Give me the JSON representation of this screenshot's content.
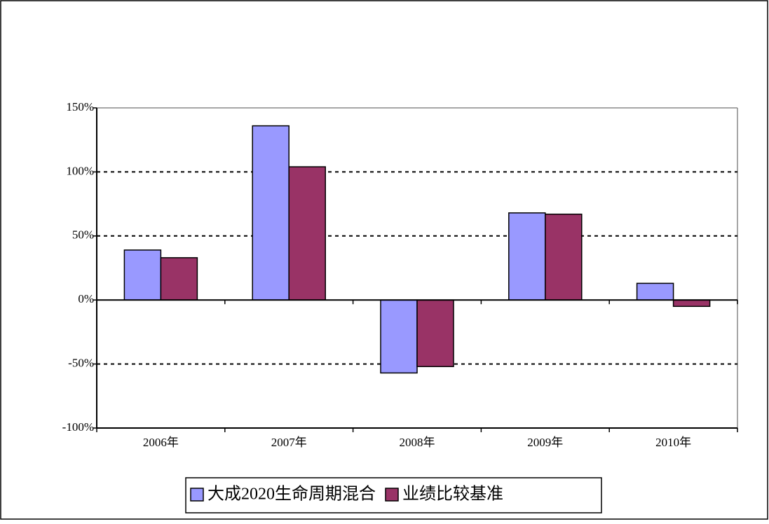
{
  "chart_data": {
    "type": "bar",
    "categories": [
      "2006年",
      "2007年",
      "2008年",
      "2009年",
      "2010年"
    ],
    "series": [
      {
        "name": "大成2020生命周期混合",
        "color": "#9999ff",
        "values": [
          39,
          136,
          -57,
          68,
          13
        ]
      },
      {
        "name": "业绩比较基准",
        "color": "#993366",
        "values": [
          33,
          104,
          -52,
          67,
          -5
        ]
      }
    ],
    "ylim": [
      -100,
      150
    ],
    "yticks": [
      {
        "value": -100,
        "label": "-100%"
      },
      {
        "value": -50,
        "label": "-50%"
      },
      {
        "value": 0,
        "label": "0%"
      },
      {
        "value": 50,
        "label": "50%"
      },
      {
        "value": 100,
        "label": "100%"
      },
      {
        "value": 150,
        "label": "150%"
      }
    ],
    "grid": true,
    "legend": "bottom"
  }
}
